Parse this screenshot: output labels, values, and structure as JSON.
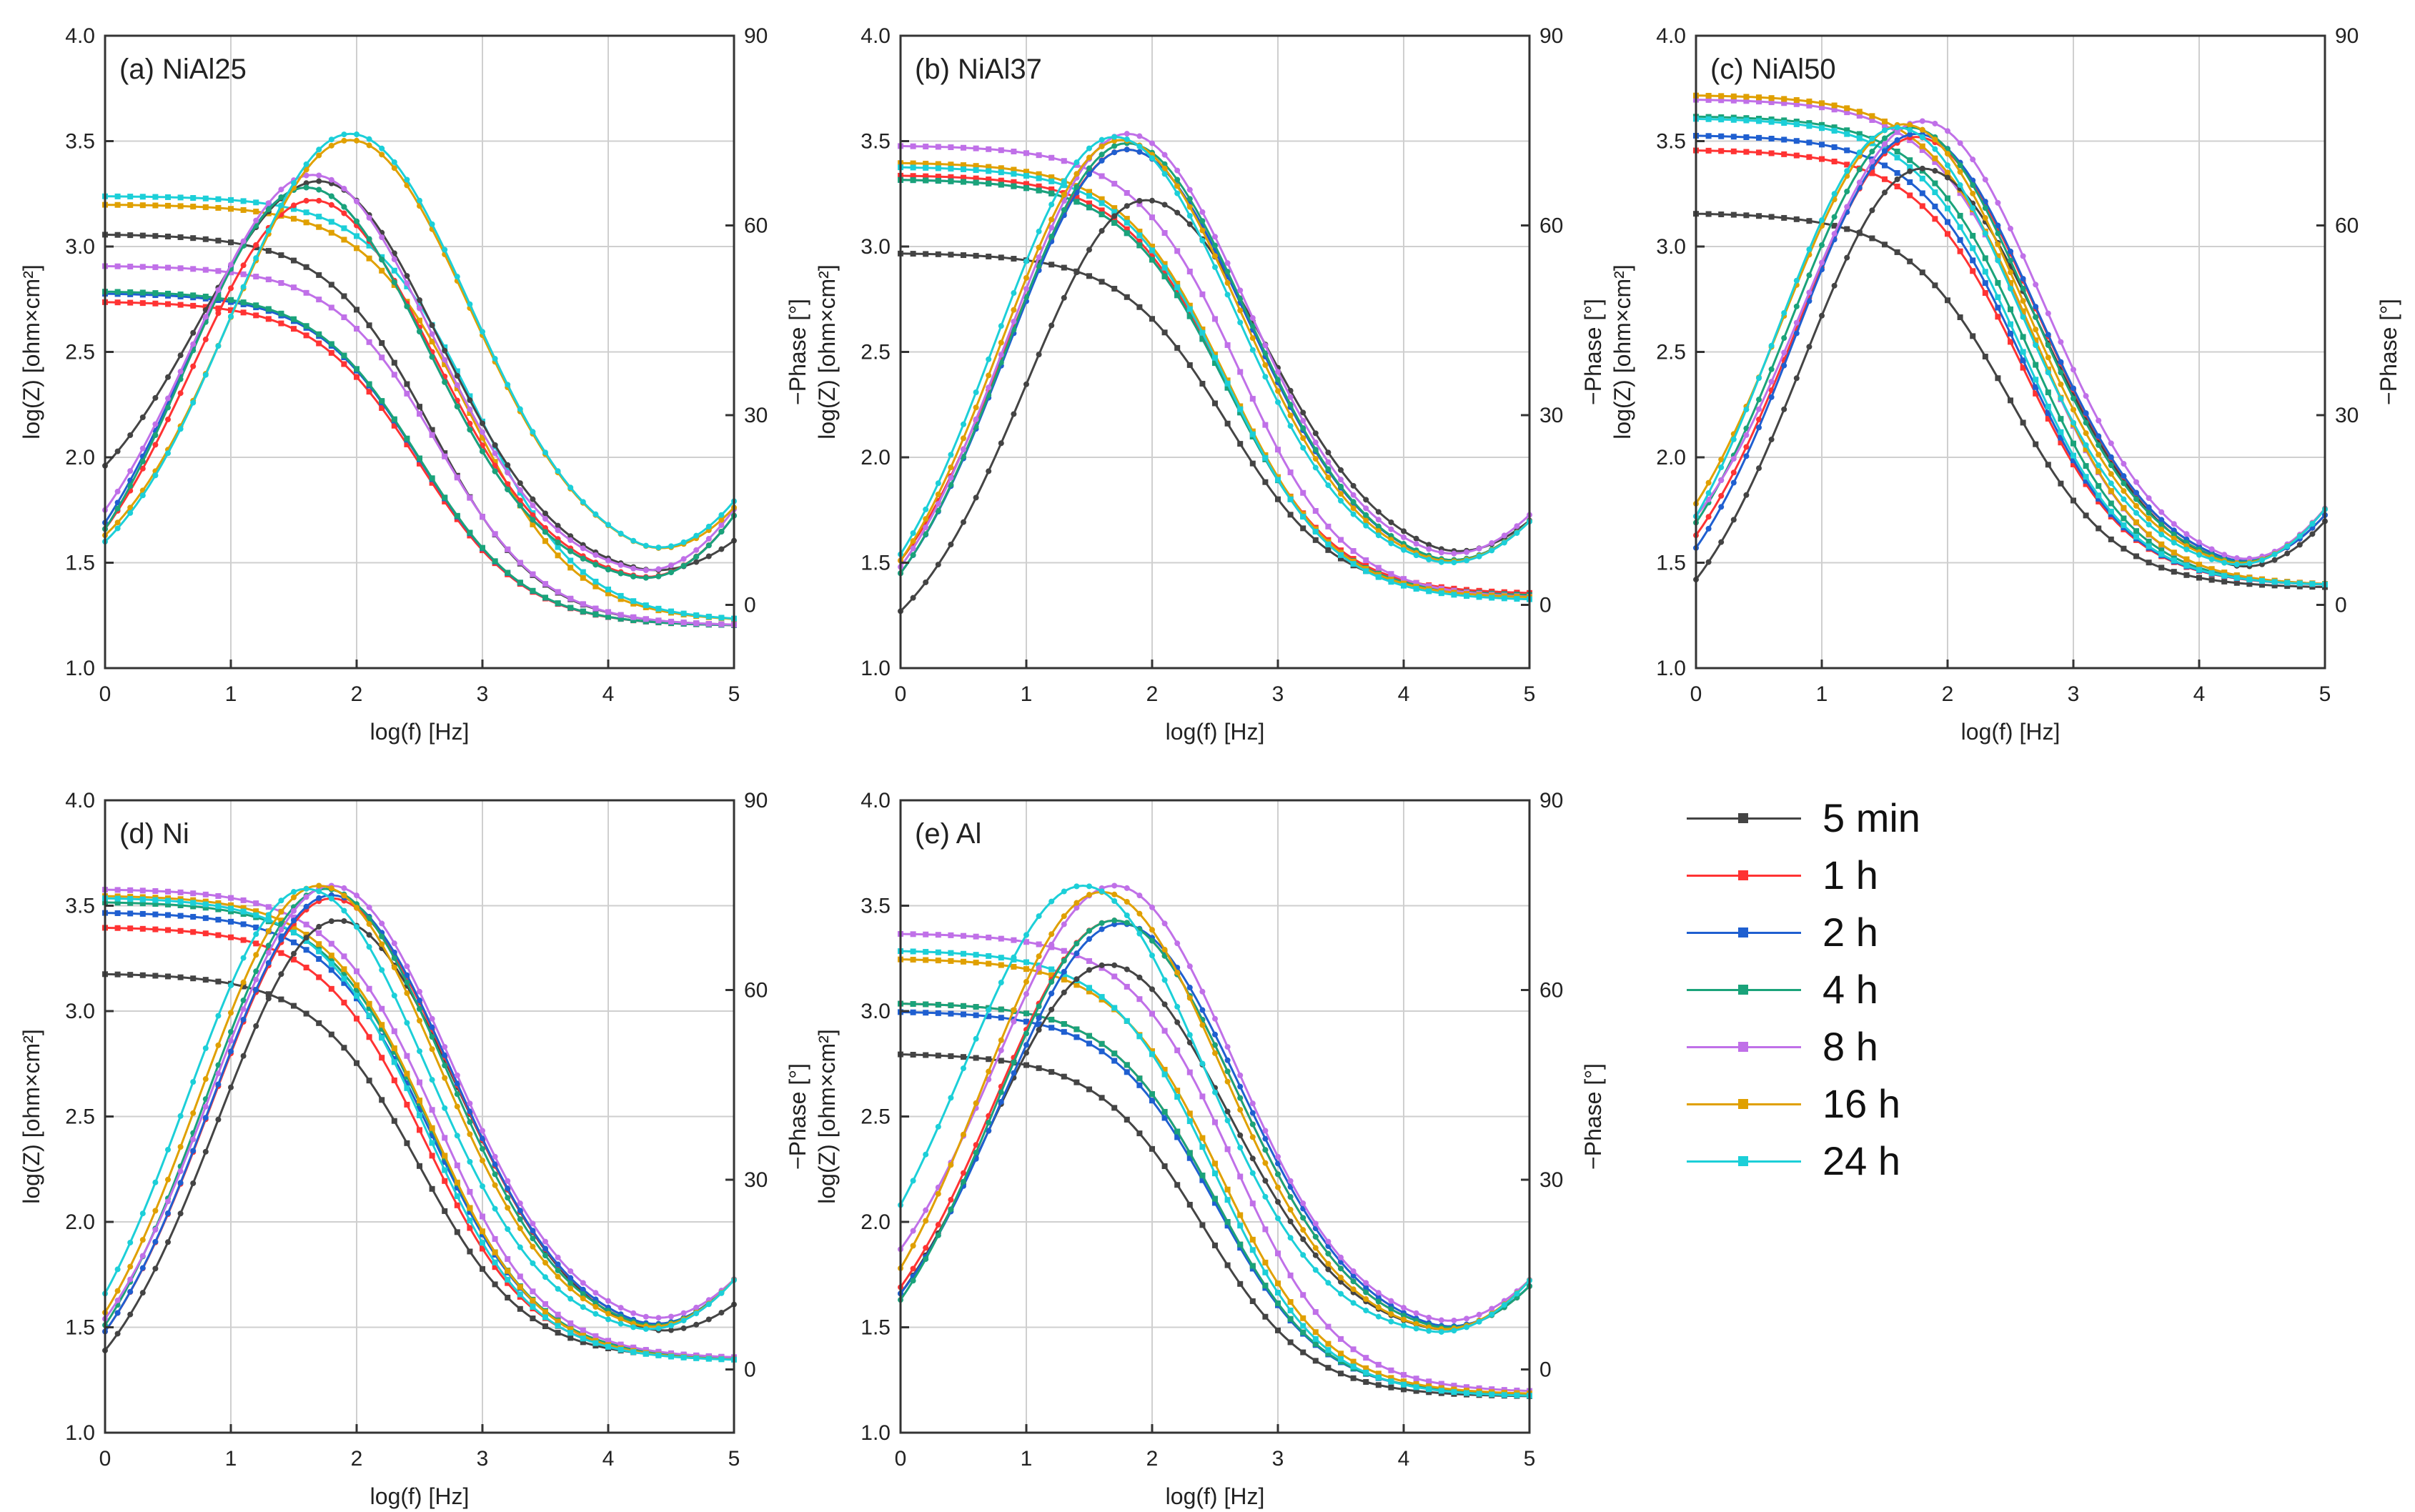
{
  "chart_data": [
    {
      "type": "line",
      "panel_label": "(a) NiAl25",
      "xlabel": "log(f) [Hz]",
      "ylabel": "log(Z) [ohm×cm²]",
      "y2label": "−Phase [°]",
      "xlim": [
        0,
        5
      ],
      "ylim": [
        1.0,
        4.0
      ],
      "y2lim": [
        -10,
        90
      ],
      "x_ticks": [
        "0",
        "1",
        "2",
        "3",
        "4",
        "5"
      ],
      "y_ticks": [
        "1.0",
        "1.5",
        "2.0",
        "2.5",
        "3.0",
        "3.5",
        "4.0"
      ],
      "y2_ticks": [
        "0",
        "30",
        "60",
        "90"
      ],
      "grid": true,
      "logz_series": [
        {
          "name": "5 min",
          "z_low": 3.06,
          "z_high": 1.2,
          "knee": 2.6
        },
        {
          "name": "1 h",
          "z_low": 2.74,
          "z_high": 1.2,
          "knee": 2.5
        },
        {
          "name": "2 h",
          "z_low": 2.78,
          "z_high": 1.2,
          "knee": 2.5
        },
        {
          "name": "4 h",
          "z_low": 2.79,
          "z_high": 1.2,
          "knee": 2.5
        },
        {
          "name": "8 h",
          "z_low": 2.91,
          "z_high": 1.2,
          "knee": 2.65
        },
        {
          "name": "16 h",
          "z_low": 3.2,
          "z_high": 1.22,
          "knee": 2.9
        },
        {
          "name": "24 h",
          "z_low": 3.24,
          "z_high": 1.22,
          "knee": 2.95
        }
      ],
      "phase_series": [
        {
          "name": "5 min",
          "peak": 67,
          "peak_x": 1.7,
          "start": 22,
          "end": 10,
          "min": 4
        },
        {
          "name": "1 h",
          "peak": 64,
          "peak_x": 1.65,
          "start": 12,
          "end": 14,
          "min": 3
        },
        {
          "name": "2 h",
          "peak": 66,
          "peak_x": 1.6,
          "start": 13,
          "end": 14,
          "min": 3
        },
        {
          "name": "4 h",
          "peak": 66,
          "peak_x": 1.6,
          "start": 12,
          "end": 14,
          "min": 3
        },
        {
          "name": "8 h",
          "peak": 68,
          "peak_x": 1.65,
          "start": 15,
          "end": 15,
          "min": 4
        },
        {
          "name": "16 h",
          "peak": 73.5,
          "peak_x": 1.95,
          "start": 11,
          "end": 15,
          "min": 6
        },
        {
          "name": "24 h",
          "peak": 74.5,
          "peak_x": 1.95,
          "start": 10,
          "end": 16,
          "min": 6
        }
      ]
    },
    {
      "type": "line",
      "panel_label": "(b) NiAl37",
      "xlabel": "log(f) [Hz]",
      "ylabel": "log(Z) [ohm×cm²]",
      "y2label": "−Phase [°]",
      "xlim": [
        0,
        5
      ],
      "ylim": [
        1.0,
        4.0
      ],
      "y2lim": [
        -10,
        90
      ],
      "x_ticks": [
        "0",
        "1",
        "2",
        "3",
        "4",
        "5"
      ],
      "y_ticks": [
        "1.0",
        "1.5",
        "2.0",
        "2.5",
        "3.0",
        "3.5",
        "4.0"
      ],
      "y2_ticks": [
        "0",
        "30",
        "60",
        "90"
      ],
      "grid": true,
      "logz_series": [
        {
          "name": "5 min",
          "z_low": 2.97,
          "z_high": 1.35,
          "knee": 2.6
        },
        {
          "name": "1 h",
          "z_low": 3.34,
          "z_high": 1.35,
          "knee": 2.6
        },
        {
          "name": "2 h",
          "z_low": 3.32,
          "z_high": 1.34,
          "knee": 2.6
        },
        {
          "name": "4 h",
          "z_low": 3.32,
          "z_high": 1.34,
          "knee": 2.6
        },
        {
          "name": "8 h",
          "z_low": 3.48,
          "z_high": 1.33,
          "knee": 2.7
        },
        {
          "name": "16 h",
          "z_low": 3.4,
          "z_high": 1.33,
          "knee": 2.6
        },
        {
          "name": "24 h",
          "z_low": 3.38,
          "z_high": 1.32,
          "knee": 2.6
        }
      ],
      "phase_series": [
        {
          "name": "5 min",
          "peak": 64,
          "peak_x": 1.95,
          "start": -1,
          "end": 13,
          "min": 6
        },
        {
          "name": "1 h",
          "peak": 72,
          "peak_x": 1.8,
          "start": 7,
          "end": 13,
          "min": 5
        },
        {
          "name": "2 h",
          "peak": 72,
          "peak_x": 1.8,
          "start": 5,
          "end": 13,
          "min": 5
        },
        {
          "name": "4 h",
          "peak": 73,
          "peak_x": 1.8,
          "start": 5,
          "end": 13,
          "min": 5
        },
        {
          "name": "8 h",
          "peak": 74.5,
          "peak_x": 1.8,
          "start": 6,
          "end": 14,
          "min": 6
        },
        {
          "name": "16 h",
          "peak": 73.5,
          "peak_x": 1.75,
          "start": 7,
          "end": 13,
          "min": 5
        },
        {
          "name": "24 h",
          "peak": 74,
          "peak_x": 1.7,
          "start": 8,
          "end": 13,
          "min": 5
        }
      ]
    },
    {
      "type": "line",
      "panel_label": "(c) NiAl50",
      "xlabel": "log(f) [Hz]",
      "ylabel": "log(Z) [ohm×cm²]",
      "y2label": "−Phase [°]",
      "xlim": [
        0,
        5
      ],
      "ylim": [
        1.0,
        4.0
      ],
      "y2lim": [
        -10,
        90
      ],
      "x_ticks": [
        "0",
        "1",
        "2",
        "3",
        "4",
        "5"
      ],
      "y_ticks": [
        "1.0",
        "1.5",
        "2.0",
        "2.5",
        "3.0",
        "3.5",
        "4.0"
      ],
      "y2_ticks": [
        "0",
        "30",
        "60",
        "90"
      ],
      "grid": true,
      "logz_series": [
        {
          "name": "5 min",
          "z_low": 3.16,
          "z_high": 1.38,
          "knee": 2.5
        },
        {
          "name": "1 h",
          "z_low": 3.46,
          "z_high": 1.39,
          "knee": 2.6
        },
        {
          "name": "2 h",
          "z_low": 3.53,
          "z_high": 1.39,
          "knee": 2.6
        },
        {
          "name": "4 h",
          "z_low": 3.62,
          "z_high": 1.39,
          "knee": 2.65
        },
        {
          "name": "8 h",
          "z_low": 3.7,
          "z_high": 1.39,
          "knee": 2.7
        },
        {
          "name": "16 h",
          "z_low": 3.72,
          "z_high": 1.39,
          "knee": 2.7
        },
        {
          "name": "24 h",
          "z_low": 3.61,
          "z_high": 1.39,
          "knee": 2.6
        }
      ],
      "phase_series": [
        {
          "name": "5 min",
          "peak": 69,
          "peak_x": 1.8,
          "start": 4,
          "end": 13,
          "min": 4
        },
        {
          "name": "1 h",
          "peak": 74,
          "peak_x": 1.75,
          "start": 11,
          "end": 14,
          "min": 5
        },
        {
          "name": "2 h",
          "peak": 74.5,
          "peak_x": 1.75,
          "start": 9,
          "end": 14,
          "min": 5
        },
        {
          "name": "4 h",
          "peak": 75.5,
          "peak_x": 1.7,
          "start": 13,
          "end": 15,
          "min": 5
        },
        {
          "name": "8 h",
          "peak": 76.5,
          "peak_x": 1.8,
          "start": 14,
          "end": 15,
          "min": 5
        },
        {
          "name": "16 h",
          "peak": 76,
          "peak_x": 1.65,
          "start": 16,
          "end": 15,
          "min": 5
        },
        {
          "name": "24 h",
          "peak": 75.5,
          "peak_x": 1.6,
          "start": 14,
          "end": 15,
          "min": 5
        }
      ]
    },
    {
      "type": "line",
      "panel_label": "(d) Ni",
      "xlabel": "log(f) [Hz]",
      "ylabel": "log(Z) [ohm×cm²]",
      "y2label": "−Phase [°]",
      "xlim": [
        0,
        5
      ],
      "ylim": [
        1.0,
        4.0
      ],
      "y2lim": [
        -10,
        90
      ],
      "x_ticks": [
        "0",
        "1",
        "2",
        "3",
        "4",
        "5"
      ],
      "y_ticks": [
        "1.0",
        "1.5",
        "2.0",
        "2.5",
        "3.0",
        "3.5",
        "4.0"
      ],
      "y2_ticks": [
        "0",
        "30",
        "60",
        "90"
      ],
      "grid": true,
      "logz_series": [
        {
          "name": "5 min",
          "z_low": 3.18,
          "z_high": 1.35,
          "knee": 2.5
        },
        {
          "name": "1 h",
          "z_low": 3.4,
          "z_high": 1.35,
          "knee": 2.55
        },
        {
          "name": "2 h",
          "z_low": 3.47,
          "z_high": 1.35,
          "knee": 2.6
        },
        {
          "name": "4 h",
          "z_low": 3.52,
          "z_high": 1.35,
          "knee": 2.6
        },
        {
          "name": "8 h",
          "z_low": 3.58,
          "z_high": 1.35,
          "knee": 2.65
        },
        {
          "name": "16 h",
          "z_low": 3.55,
          "z_high": 1.34,
          "knee": 2.6
        },
        {
          "name": "24 h",
          "z_low": 3.54,
          "z_high": 1.34,
          "knee": 2.55
        }
      ],
      "phase_series": [
        {
          "name": "5 min",
          "peak": 71,
          "peak_x": 1.85,
          "start": 3,
          "end": 10,
          "min": 4
        },
        {
          "name": "1 h",
          "peak": 74.5,
          "peak_x": 1.8,
          "start": 6,
          "end": 14,
          "min": 5
        },
        {
          "name": "2 h",
          "peak": 75,
          "peak_x": 1.8,
          "start": 6,
          "end": 14,
          "min": 5
        },
        {
          "name": "4 h",
          "peak": 76,
          "peak_x": 1.75,
          "start": 7,
          "end": 14,
          "min": 5
        },
        {
          "name": "8 h",
          "peak": 76.5,
          "peak_x": 1.8,
          "start": 8,
          "end": 14,
          "min": 6
        },
        {
          "name": "16 h",
          "peak": 76.5,
          "peak_x": 1.7,
          "start": 9,
          "end": 14,
          "min": 5
        },
        {
          "name": "24 h",
          "peak": 76,
          "peak_x": 1.6,
          "start": 12,
          "end": 14,
          "min": 5
        }
      ]
    },
    {
      "type": "line",
      "panel_label": "(e) Al",
      "xlabel": "log(f) [Hz]",
      "ylabel": "log(Z) [ohm×cm²]",
      "y2label": "−Phase [°]",
      "xlim": [
        0,
        5
      ],
      "ylim": [
        1.0,
        4.0
      ],
      "y2lim": [
        -10,
        90
      ],
      "x_ticks": [
        "0",
        "1",
        "2",
        "3",
        "4",
        "5"
      ],
      "y_ticks": [
        "1.0",
        "1.5",
        "2.0",
        "2.5",
        "3.0",
        "3.5",
        "4.0"
      ],
      "y2_ticks": [
        "0",
        "30",
        "60",
        "90"
      ],
      "grid": true,
      "logz_series": [
        {
          "name": "5 min",
          "z_low": 2.8,
          "z_high": 1.17,
          "knee": 2.4
        },
        {
          "name": "1 h",
          "z_low": 3.04,
          "z_high": 1.18,
          "knee": 2.5
        },
        {
          "name": "2 h",
          "z_low": 3.0,
          "z_high": 1.18,
          "knee": 2.5
        },
        {
          "name": "4 h",
          "z_low": 3.04,
          "z_high": 1.18,
          "knee": 2.5
        },
        {
          "name": "8 h",
          "z_low": 3.37,
          "z_high": 1.19,
          "knee": 2.65
        },
        {
          "name": "16 h",
          "z_low": 3.25,
          "z_high": 1.18,
          "knee": 2.55
        },
        {
          "name": "24 h",
          "z_low": 3.29,
          "z_high": 1.17,
          "knee": 2.5
        }
      ],
      "phase_series": [
        {
          "name": "5 min",
          "peak": 64,
          "peak_x": 1.65,
          "start": 12,
          "end": 14,
          "min": 5
        },
        {
          "name": "1 h",
          "peak": 71,
          "peak_x": 1.7,
          "start": 13,
          "end": 13,
          "min": 5
        },
        {
          "name": "2 h",
          "peak": 70.5,
          "peak_x": 1.75,
          "start": 12,
          "end": 13,
          "min": 5
        },
        {
          "name": "4 h",
          "peak": 71,
          "peak_x": 1.7,
          "start": 11,
          "end": 13,
          "min": 5
        },
        {
          "name": "8 h",
          "peak": 76.5,
          "peak_x": 1.7,
          "start": 19,
          "end": 14,
          "min": 6
        },
        {
          "name": "16 h",
          "peak": 75.5,
          "peak_x": 1.6,
          "start": 16,
          "end": 14,
          "min": 5
        },
        {
          "name": "24 h",
          "peak": 76.5,
          "peak_x": 1.45,
          "start": 26,
          "end": 14,
          "min": 5
        }
      ]
    }
  ],
  "legend": {
    "position": "right-bottom",
    "items": [
      {
        "name": "5 min",
        "color": "#444444"
      },
      {
        "name": "1 h",
        "color": "#ff3333"
      },
      {
        "name": "2 h",
        "color": "#1f5fd0"
      },
      {
        "name": "4 h",
        "color": "#1aa37a"
      },
      {
        "name": "8 h",
        "color": "#c070e8"
      },
      {
        "name": "16 h",
        "color": "#e0a000"
      },
      {
        "name": "24 h",
        "color": "#1ccfd8"
      }
    ]
  }
}
